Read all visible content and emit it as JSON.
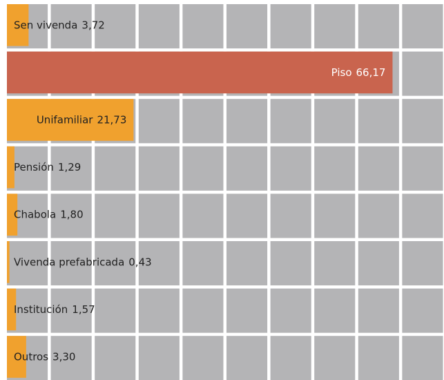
{
  "chart_data": {
    "type": "hbar",
    "categories": [
      "Sen vivenda",
      "Piso",
      "Unifamiliar",
      "Pensión",
      "Chabola",
      "Vivenda prefabricada",
      "Institución",
      "Outros"
    ],
    "values": [
      3.72,
      66.17,
      21.73,
      1.29,
      1.8,
      0.43,
      1.57,
      3.3
    ],
    "value_labels": [
      "3,72",
      "66,17",
      "21,73",
      "1,29",
      "1,80",
      "0,43",
      "1,57",
      "3,30"
    ],
    "colors": [
      "#f0a12e",
      "#c9644e",
      "#f0a12e",
      "#f0a12e",
      "#f0a12e",
      "#f0a12e",
      "#f0a12e",
      "#f0a12e"
    ],
    "xlim": [
      0,
      75
    ]
  }
}
